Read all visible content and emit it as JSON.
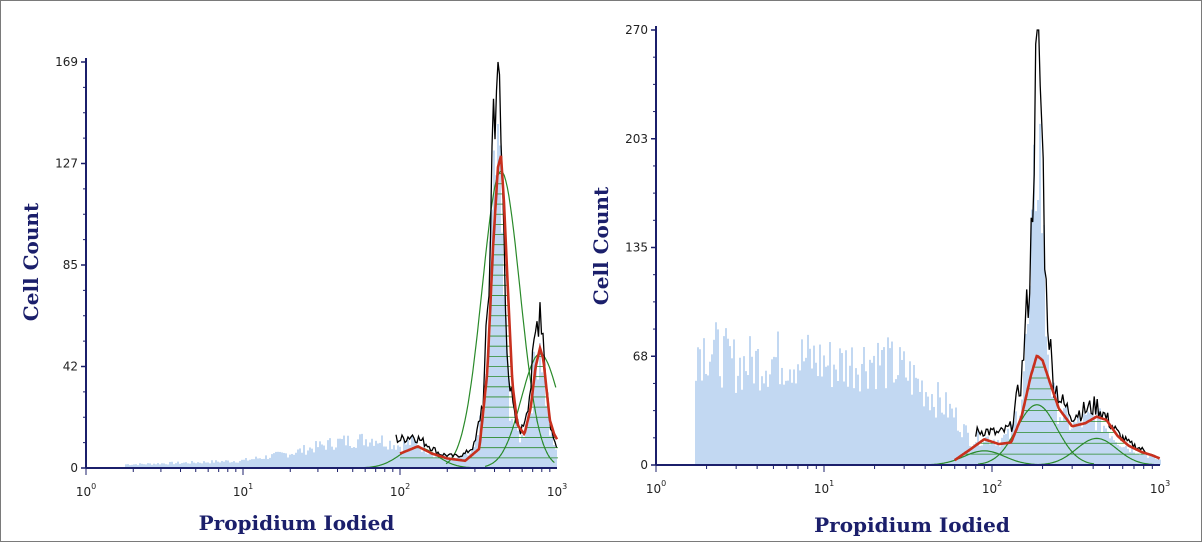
{
  "colors": {
    "axis": "#1b1f6b",
    "raw": "#000000",
    "histogram_fill": "#a9c8ec",
    "fit": "#c8301e",
    "component": "#2a8a2a"
  },
  "chart_data": [
    {
      "type": "area",
      "xscale": "log",
      "xlim": [
        1,
        1000
      ],
      "ylim": [
        0,
        169
      ],
      "xlabel": "Propidium Iodied",
      "ylabel": "Cell Count",
      "y_ticks": [
        "0",
        "42",
        "85",
        "127",
        "169"
      ],
      "x_ticks": [
        {
          "base": "10",
          "exp": "0"
        },
        {
          "base": "10",
          "exp": "1"
        },
        {
          "base": "10",
          "exp": "2"
        },
        {
          "base": "10",
          "exp": "3"
        }
      ],
      "series": [
        {
          "role": "raw",
          "x": [
            2,
            5,
            10,
            20,
            40,
            70,
            100,
            120,
            150,
            180,
            220,
            260,
            300,
            340,
            370,
            390,
            410,
            430,
            450,
            470,
            500,
            540,
            600,
            680,
            740,
            780,
            810,
            850,
            900,
            950,
            1000
          ],
          "y": [
            2,
            3,
            4,
            8,
            14,
            16,
            12,
            14,
            10,
            6,
            5,
            6,
            10,
            30,
            80,
            150,
            169,
            155,
            120,
            70,
            35,
            20,
            16,
            35,
            60,
            72,
            60,
            40,
            20,
            12,
            10
          ]
        },
        {
          "role": "fit",
          "x": [
            100,
            130,
            160,
            200,
            260,
            320,
            360,
            390,
            420,
            440,
            460,
            490,
            520,
            560,
            620,
            680,
            730,
            780,
            820,
            860,
            900,
            960,
            1000
          ],
          "y": [
            6,
            9,
            6,
            4,
            3,
            8,
            40,
            90,
            125,
            130,
            110,
            70,
            35,
            18,
            14,
            25,
            42,
            50,
            45,
            32,
            20,
            14,
            12
          ]
        }
      ]
    },
    {
      "type": "area",
      "xscale": "log",
      "xlim": [
        1,
        1000
      ],
      "ylim": [
        0,
        270
      ],
      "xlabel": "Propidium Iodied",
      "ylabel": "Cell Count",
      "y_ticks": [
        "0",
        "68",
        "135",
        "203",
        "270"
      ],
      "x_ticks": [
        {
          "base": "10",
          "exp": "0"
        },
        {
          "base": "10",
          "exp": "1"
        },
        {
          "base": "10",
          "exp": "2"
        },
        {
          "base": "10",
          "exp": "3"
        }
      ],
      "series": [
        {
          "role": "raw",
          "x": [
            2,
            3,
            5,
            8,
            12,
            20,
            30,
            45,
            60,
            75,
            90,
            110,
            130,
            150,
            170,
            180,
            190,
            200,
            210,
            230,
            260,
            300,
            360,
            420,
            480,
            560,
            650,
            780,
            900,
            1000
          ],
          "y": [
            95,
            80,
            85,
            85,
            80,
            85,
            75,
            55,
            40,
            20,
            22,
            20,
            24,
            55,
            130,
            230,
            270,
            200,
            110,
            55,
            40,
            32,
            35,
            38,
            30,
            20,
            14,
            10,
            6,
            4
          ]
        },
        {
          "role": "fit",
          "x": [
            60,
            75,
            90,
            110,
            130,
            150,
            170,
            185,
            200,
            220,
            250,
            300,
            360,
            420,
            480,
            560,
            650,
            780,
            900,
            1000
          ],
          "y": [
            3,
            10,
            16,
            13,
            14,
            30,
            55,
            68,
            65,
            52,
            35,
            24,
            26,
            30,
            28,
            18,
            12,
            8,
            6,
            4
          ]
        }
      ]
    }
  ]
}
